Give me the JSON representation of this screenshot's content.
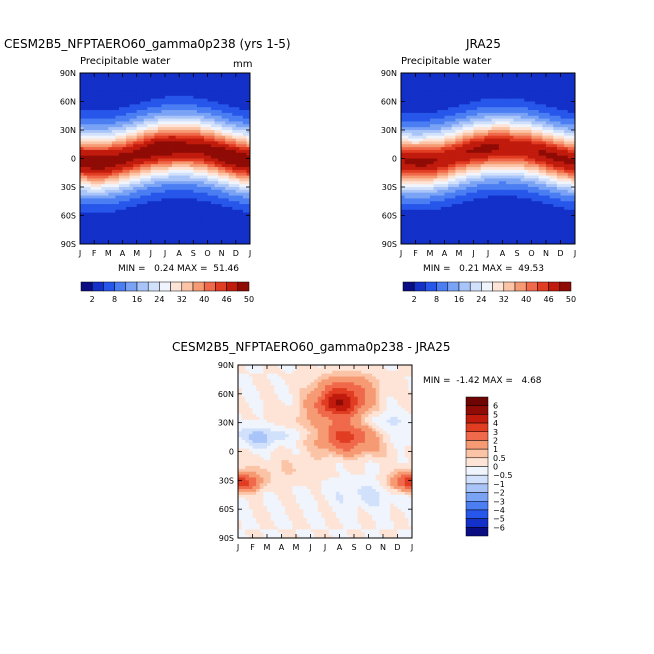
{
  "chart_data": [
    {
      "type": "heatmap",
      "id": "p1",
      "title": "CESM2B5_NFPTAERO60_gamma0p238 (yrs 1-5)",
      "subtitle": "Precipitable water",
      "units": "mm",
      "stats": "MIN =   0.24 MAX =  51.46",
      "x_ticks": [
        "J",
        "F",
        "M",
        "A",
        "M",
        "J",
        "J",
        "A",
        "S",
        "O",
        "N",
        "D",
        "J"
      ],
      "y_ticks": [
        "90N",
        "60N",
        "30N",
        "0",
        "30S",
        "60S",
        "90S"
      ],
      "xlim": [
        0,
        12
      ],
      "ylim": [
        -90,
        90
      ],
      "field": {
        "base": 3,
        "peak": 52,
        "peak_lat": 4,
        "seasonal_shift": 8,
        "peak_month": 7,
        "width": 30,
        "noise": 0
      }
    },
    {
      "type": "heatmap",
      "id": "p2",
      "title": "JRA25",
      "subtitle": "Precipitable water",
      "units": "",
      "stats": "MIN =   0.21 MAX =  49.53",
      "x_ticks": [
        "J",
        "F",
        "M",
        "A",
        "M",
        "J",
        "J",
        "A",
        "S",
        "O",
        "N",
        "D",
        "J"
      ],
      "y_ticks": [
        "90N",
        "60N",
        "30N",
        "0",
        "30S",
        "60S",
        "90S"
      ],
      "xlim": [
        0,
        12
      ],
      "ylim": [
        -90,
        90
      ],
      "field": {
        "base": 3,
        "peak": 50,
        "peak_lat": 4,
        "seasonal_shift": 8,
        "peak_month": 7,
        "width": 29,
        "noise": 0
      }
    },
    {
      "type": "heatmap",
      "id": "p3",
      "title": "CESM2B5_NFPTAERO60_gamma0p238 - JRA25",
      "stats": "MIN =  -1.42 MAX =   4.68",
      "x_ticks": [
        "J",
        "F",
        "M",
        "A",
        "M",
        "J",
        "J",
        "A",
        "S",
        "O",
        "N",
        "D",
        "J"
      ],
      "y_ticks": [
        "90N",
        "60N",
        "30N",
        "0",
        "30S",
        "60S",
        "90S"
      ],
      "xlim": [
        0,
        12
      ],
      "ylim": [
        -90,
        90
      ],
      "diff_blobs": [
        {
          "month": 7,
          "lat": 50,
          "amp": 4.6,
          "sm": 1.2,
          "sl": 10
        },
        {
          "month": 7.5,
          "lat": 15,
          "amp": 2.8,
          "sm": 1.3,
          "sl": 9
        },
        {
          "month": 7.5,
          "lat": 68,
          "amp": 1.8,
          "sm": 1.5,
          "sl": 10
        },
        {
          "month": 0.5,
          "lat": -32,
          "amp": 2.4,
          "sm": 0.8,
          "sl": 7
        },
        {
          "month": 11.5,
          "lat": -32,
          "amp": 2.2,
          "sm": 0.8,
          "sl": 7
        },
        {
          "month": 6,
          "lat": 25,
          "amp": 1.2,
          "sm": 2.5,
          "sl": 12
        },
        {
          "month": 1.5,
          "lat": 15,
          "amp": -1.3,
          "sm": 1.2,
          "sl": 8
        },
        {
          "month": 4.5,
          "lat": 20,
          "amp": -0.9,
          "sm": 1.5,
          "sl": 7
        },
        {
          "month": 10,
          "lat": 30,
          "amp": -0.9,
          "sm": 1.2,
          "sl": 8
        },
        {
          "month": 9,
          "lat": -45,
          "amp": -0.6,
          "sm": 2,
          "sl": 10
        },
        {
          "month": 8,
          "lat": 0,
          "amp": 0.8,
          "sm": 1.8,
          "sl": 6
        },
        {
          "month": 3,
          "lat": -20,
          "amp": 0.5,
          "sm": 2,
          "sl": 10
        }
      ]
    }
  ],
  "legend_abs": {
    "labels": [
      "2",
      "8",
      "16",
      "24",
      "32",
      "40",
      "46",
      "50"
    ],
    "colors": [
      "#0a0e82",
      "#1330c8",
      "#2756ea",
      "#4a7ef2",
      "#7aa2f5",
      "#a9c4f8",
      "#d2e1fb",
      "#f0f4fc",
      "#fde4d6",
      "#fbc4a6",
      "#f69a74",
      "#f0694a",
      "#e13d22",
      "#c11b0d",
      "#8f0b05"
    ],
    "thresholds": [
      2,
      5,
      8,
      12,
      16,
      20,
      24,
      28,
      32,
      36,
      40,
      43,
      46,
      50
    ]
  },
  "legend_diff": {
    "labels": [
      "6",
      "5",
      "4",
      "3",
      "2",
      "1",
      "0.5",
      "0",
      "−0.5",
      "−1",
      "−2",
      "−3",
      "−4",
      "−5",
      "−6"
    ],
    "colors": [
      "#0a0e82",
      "#1330c8",
      "#2756ea",
      "#4a7ef2",
      "#7aa2f5",
      "#a9c4f8",
      "#d2e1fb",
      "#f0f4fc",
      "#fde4d6",
      "#fbc4a6",
      "#f69a74",
      "#f0694a",
      "#e13d22",
      "#c11b0d",
      "#8f0b05",
      "#6e0502"
    ],
    "thresholds": [
      -6,
      -5,
      -4,
      -3,
      -2,
      -1,
      -0.5,
      0,
      0.5,
      1,
      2,
      3,
      4,
      5,
      6
    ]
  }
}
